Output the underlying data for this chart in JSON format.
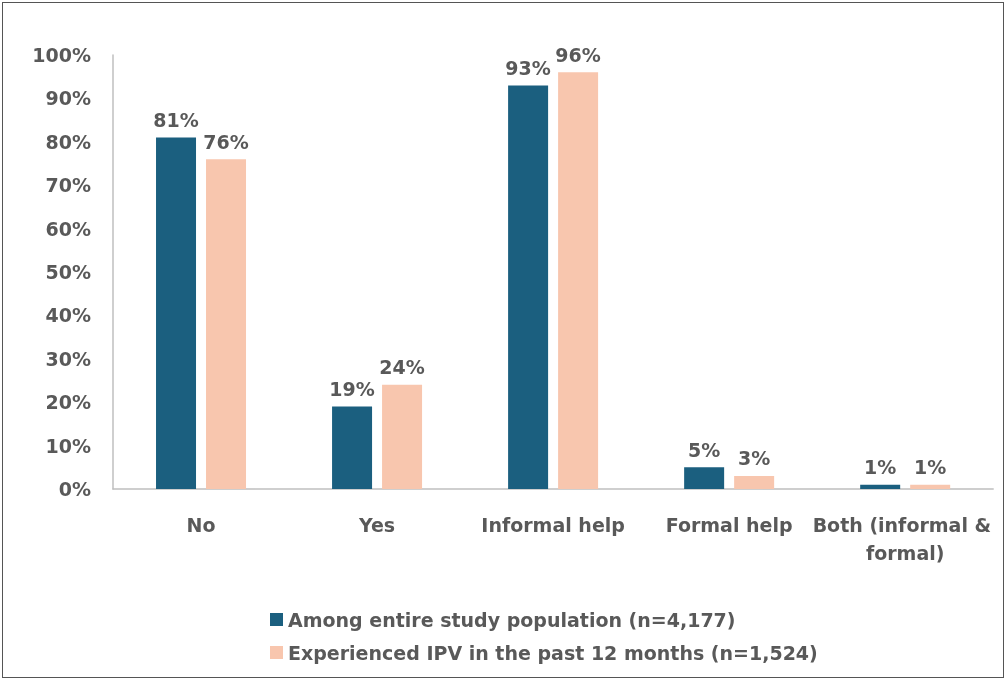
{
  "chart_data": {
    "type": "bar",
    "categories": [
      "No",
      "Yes",
      "Informal help",
      "Formal help",
      "Both (informal & formal)"
    ],
    "series": [
      {
        "name": "Among entire study population (n=4,177)",
        "color": "#1b5f7f",
        "values": [
          81,
          19,
          93,
          5,
          1
        ],
        "value_labels": [
          "81%",
          "19%",
          "93%",
          "5%",
          "1%"
        ]
      },
      {
        "name": "Experienced IPV in the past 12 months (n=1,524)",
        "color": "#f8c6ae",
        "values": [
          76,
          24,
          96,
          3,
          1
        ],
        "value_labels": [
          "76%",
          "24%",
          "96%",
          "3%",
          "1%"
        ]
      }
    ],
    "ylim": [
      0,
      100
    ],
    "yticks": [
      {
        "value": 0,
        "label": "0%"
      },
      {
        "value": 10,
        "label": "10%"
      },
      {
        "value": 20,
        "label": "20%"
      },
      {
        "value": 30,
        "label": "30%"
      },
      {
        "value": 40,
        "label": "40%"
      },
      {
        "value": 50,
        "label": "50%"
      },
      {
        "value": 60,
        "label": "60%"
      },
      {
        "value": 70,
        "label": "70%"
      },
      {
        "value": 80,
        "label": "80%"
      },
      {
        "value": 90,
        "label": "90%"
      },
      {
        "value": 100,
        "label": "100%"
      }
    ],
    "grid": false,
    "legend": "bottom"
  }
}
